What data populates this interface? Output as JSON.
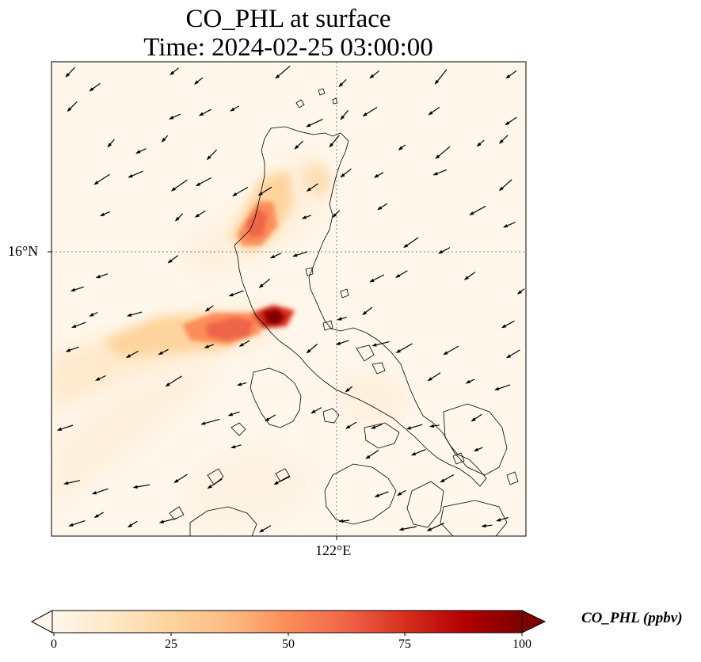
{
  "title_line1": "CO_PHL at surface",
  "title_line2": "Time: 2024-02-25 03:00:00",
  "axes": {
    "lat_label": "16°N",
    "lon_label": "122°E"
  },
  "colorbar": {
    "label": "CO_PHL (ppbv)",
    "ticks": [
      "0",
      "25",
      "50",
      "75",
      "100"
    ],
    "vmin": 0,
    "vmax": 100,
    "colormap": "OrRd",
    "colors": [
      "#fff7ec",
      "#fee8c8",
      "#fdd49e",
      "#fdbb84",
      "#fc8d59",
      "#ef6548",
      "#d7301f",
      "#b30000",
      "#7f0000"
    ]
  },
  "colors": {
    "coastline": "#000000",
    "gridline": "#808080",
    "background": "#fff7ec",
    "vector": "#000000"
  }
}
